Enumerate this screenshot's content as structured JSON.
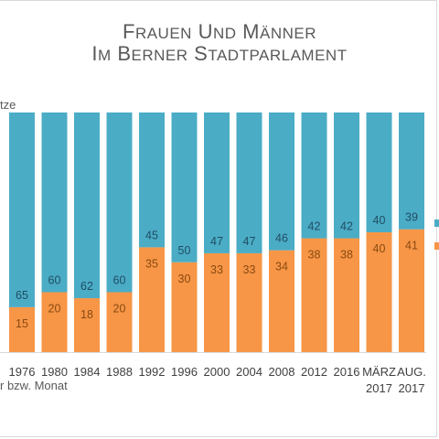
{
  "chart_data": {
    "type": "bar",
    "stacked": true,
    "title_line1": "Frauen und Männer",
    "title_line2": "im Berner Stadtparlament",
    "ylabel": "tze",
    "xlabel": "r bzw. Monat",
    "categories": [
      [
        "1976"
      ],
      [
        "1980"
      ],
      [
        "1984"
      ],
      [
        "1988"
      ],
      [
        "1992"
      ],
      [
        "1996"
      ],
      [
        "2000"
      ],
      [
        "2004"
      ],
      [
        "2008"
      ],
      [
        "2012"
      ],
      [
        "2016"
      ],
      [
        "MÄRZ",
        "2017"
      ],
      [
        "AUG.",
        "2017"
      ]
    ],
    "ylim": [
      0,
      80
    ],
    "series": [
      {
        "values": [
          15,
          20,
          18,
          20,
          35,
          30,
          33,
          33,
          34,
          38,
          38,
          40,
          41
        ],
        "color": "#f79646"
      },
      {
        "values": [
          65,
          60,
          62,
          60,
          45,
          50,
          47,
          47,
          46,
          42,
          42,
          40,
          39
        ],
        "color": "#4bacc6"
      }
    ],
    "grid": false,
    "legend": "right (cut off)"
  }
}
